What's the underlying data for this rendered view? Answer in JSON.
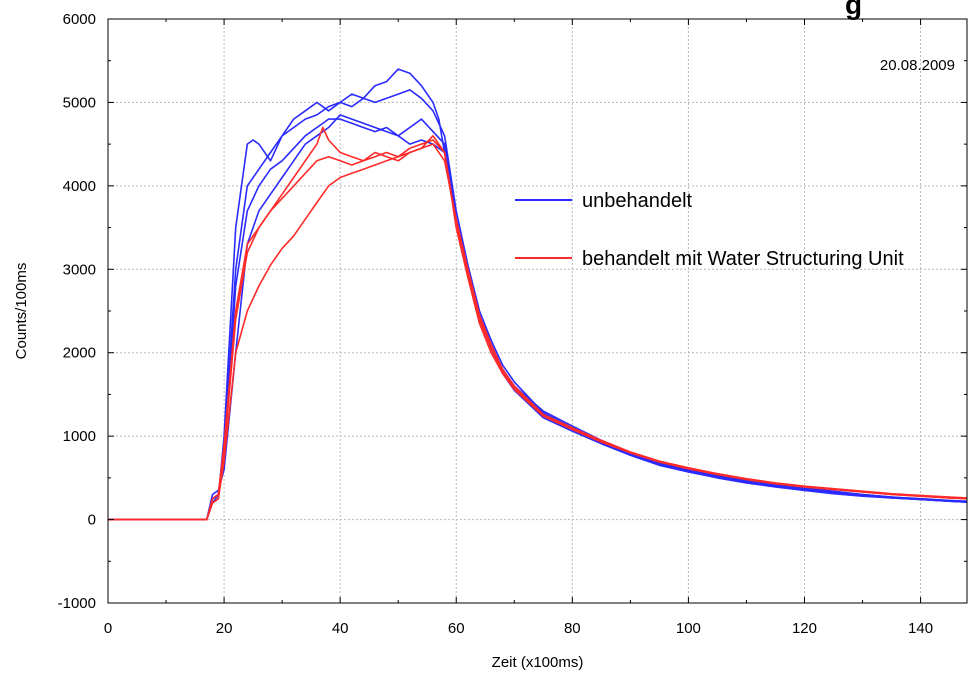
{
  "chart_data": {
    "type": "line",
    "title_visible_fragment": "g",
    "annotation": "20.08.2009",
    "xlabel": "Zeit (x100ms)",
    "ylabel": "Counts/100ms",
    "xlim": [
      0,
      148
    ],
    "ylim": [
      -1000,
      6000
    ],
    "xticks": [
      0,
      20,
      40,
      60,
      80,
      100,
      120,
      140
    ],
    "yticks": [
      -1000,
      0,
      1000,
      2000,
      3000,
      4000,
      5000,
      6000
    ],
    "grid": true,
    "legend_position": "right",
    "colors": {
      "unbehandelt": "#2b2bff",
      "behandelt": "#ff2a2a"
    },
    "legend": [
      {
        "label": "unbehandelt",
        "color": "#2b2bff"
      },
      {
        "label": "behandelt mit Water Structuring Unit",
        "color": "#ff2a2a"
      }
    ],
    "series": [
      {
        "group": "unbehandelt",
        "color": "#2b2bff",
        "x": [
          0,
          17,
          18,
          19,
          20,
          22,
          24,
          25,
          26,
          28,
          30,
          32,
          34,
          36,
          38,
          40,
          42,
          44,
          46,
          48,
          50,
          52,
          54,
          56,
          57,
          58,
          60,
          62,
          64,
          66,
          68,
          70,
          75,
          80,
          85,
          90,
          95,
          100,
          105,
          110,
          115,
          120,
          125,
          130,
          135,
          140,
          145,
          148
        ],
        "y": [
          0,
          0,
          200,
          250,
          1000,
          3500,
          4500,
          4550,
          4500,
          4300,
          4600,
          4800,
          4900,
          5000,
          4900,
          5000,
          5100,
          5050,
          5200,
          5250,
          5400,
          5350,
          5200,
          5000,
          4800,
          4400,
          3600,
          3000,
          2400,
          2100,
          1800,
          1600,
          1300,
          1120,
          950,
          800,
          680,
          600,
          530,
          470,
          420,
          380,
          340,
          300,
          270,
          240,
          220,
          210
        ]
      },
      {
        "group": "unbehandelt",
        "color": "#2b2bff",
        "x": [
          0,
          17,
          18,
          19,
          20,
          22,
          24,
          26,
          28,
          30,
          32,
          34,
          36,
          38,
          40,
          42,
          44,
          46,
          48,
          50,
          52,
          54,
          56,
          58,
          60,
          62,
          64,
          66,
          68,
          70,
          75,
          80,
          85,
          90,
          95,
          100,
          105,
          110,
          115,
          120,
          125,
          130,
          135,
          140,
          145,
          148
        ],
        "y": [
          0,
          0,
          250,
          300,
          900,
          3000,
          4000,
          4200,
          4400,
          4600,
          4700,
          4800,
          4850,
          4950,
          5000,
          4950,
          5050,
          5000,
          5050,
          5100,
          5150,
          5050,
          4900,
          4600,
          3700,
          3050,
          2500,
          2150,
          1850,
          1650,
          1280,
          1100,
          940,
          790,
          670,
          590,
          520,
          460,
          410,
          370,
          330,
          300,
          270,
          250,
          230,
          220
        ]
      },
      {
        "group": "unbehandelt",
        "color": "#2b2bff",
        "x": [
          0,
          17,
          18,
          19,
          20,
          22,
          24,
          26,
          28,
          30,
          32,
          34,
          36,
          38,
          40,
          42,
          44,
          46,
          48,
          50,
          52,
          54,
          56,
          58,
          60,
          62,
          64,
          66,
          68,
          70,
          75,
          80,
          85,
          90,
          95,
          100,
          105,
          110,
          115,
          120,
          125,
          130,
          135,
          140,
          145,
          148
        ],
        "y": [
          0,
          0,
          200,
          300,
          700,
          2800,
          3700,
          4000,
          4200,
          4300,
          4450,
          4600,
          4700,
          4800,
          4800,
          4750,
          4700,
          4650,
          4700,
          4600,
          4700,
          4800,
          4650,
          4500,
          3600,
          3000,
          2450,
          2100,
          1800,
          1600,
          1250,
          1080,
          920,
          780,
          660,
          580,
          510,
          450,
          400,
          360,
          320,
          290,
          260,
          240,
          220,
          210
        ]
      },
      {
        "group": "unbehandelt",
        "color": "#2b2bff",
        "x": [
          0,
          17,
          18,
          19,
          20,
          22,
          24,
          26,
          28,
          30,
          32,
          34,
          36,
          38,
          40,
          42,
          44,
          46,
          48,
          50,
          52,
          54,
          56,
          58,
          60,
          62,
          64,
          66,
          68,
          70,
          75,
          80,
          85,
          90,
          95,
          100,
          105,
          110,
          115,
          120,
          125,
          130,
          135,
          140,
          145,
          148
        ],
        "y": [
          0,
          0,
          300,
          350,
          600,
          2000,
          3300,
          3700,
          3900,
          4100,
          4300,
          4500,
          4600,
          4700,
          4850,
          4800,
          4750,
          4700,
          4650,
          4600,
          4500,
          4550,
          4500,
          4400,
          3550,
          2950,
          2400,
          2050,
          1750,
          1550,
          1220,
          1060,
          910,
          770,
          650,
          570,
          500,
          440,
          390,
          350,
          310,
          280,
          260,
          240,
          220,
          210
        ]
      },
      {
        "group": "behandelt",
        "color": "#ff2a2a",
        "x": [
          0,
          17,
          18,
          19,
          20,
          22,
          24,
          26,
          28,
          30,
          32,
          34,
          36,
          37,
          38,
          40,
          42,
          44,
          46,
          48,
          50,
          52,
          54,
          56,
          58,
          60,
          62,
          64,
          66,
          68,
          70,
          75,
          80,
          85,
          90,
          95,
          100,
          105,
          110,
          115,
          120,
          125,
          130,
          135,
          140,
          145,
          148
        ],
        "y": [
          0,
          0,
          250,
          300,
          900,
          2500,
          3300,
          3500,
          3700,
          3900,
          4100,
          4300,
          4500,
          4700,
          4550,
          4400,
          4350,
          4300,
          4400,
          4350,
          4300,
          4400,
          4450,
          4500,
          4300,
          3600,
          3000,
          2450,
          2100,
          1800,
          1600,
          1260,
          1100,
          950,
          810,
          700,
          620,
          550,
          490,
          440,
          400,
          370,
          340,
          310,
          290,
          270,
          260
        ]
      },
      {
        "group": "behandelt",
        "color": "#ff2a2a",
        "x": [
          0,
          17,
          18,
          19,
          20,
          22,
          24,
          26,
          28,
          30,
          32,
          34,
          36,
          38,
          40,
          42,
          44,
          46,
          48,
          50,
          52,
          54,
          56,
          58,
          60,
          62,
          64,
          66,
          68,
          70,
          75,
          80,
          85,
          90,
          95,
          100,
          105,
          110,
          115,
          120,
          125,
          130,
          135,
          140,
          145,
          148
        ],
        "y": [
          0,
          0,
          200,
          250,
          800,
          2400,
          3200,
          3500,
          3700,
          3850,
          4000,
          4150,
          4300,
          4350,
          4300,
          4250,
          4300,
          4350,
          4400,
          4350,
          4450,
          4500,
          4550,
          4400,
          3550,
          2950,
          2400,
          2050,
          1780,
          1580,
          1250,
          1090,
          940,
          800,
          690,
          610,
          540,
          480,
          430,
          390,
          360,
          330,
          300,
          280,
          260,
          250
        ]
      },
      {
        "group": "behandelt",
        "color": "#ff2a2a",
        "x": [
          0,
          17,
          18,
          19,
          20,
          22,
          24,
          26,
          28,
          30,
          32,
          34,
          36,
          38,
          40,
          42,
          44,
          46,
          48,
          50,
          52,
          54,
          56,
          58,
          60,
          62,
          64,
          66,
          68,
          70,
          75,
          80,
          85,
          90,
          95,
          100,
          105,
          110,
          115,
          120,
          125,
          130,
          135,
          140,
          145,
          148
        ],
        "y": [
          0,
          0,
          200,
          250,
          700,
          2000,
          2500,
          2800,
          3050,
          3250,
          3400,
          3600,
          3800,
          4000,
          4100,
          4150,
          4200,
          4250,
          4300,
          4350,
          4400,
          4450,
          4600,
          4400,
          3500,
          2900,
          2350,
          2000,
          1750,
          1560,
          1240,
          1080,
          930,
          800,
          690,
          610,
          540,
          480,
          430,
          390,
          360,
          330,
          300,
          280,
          260,
          250
        ]
      }
    ]
  }
}
